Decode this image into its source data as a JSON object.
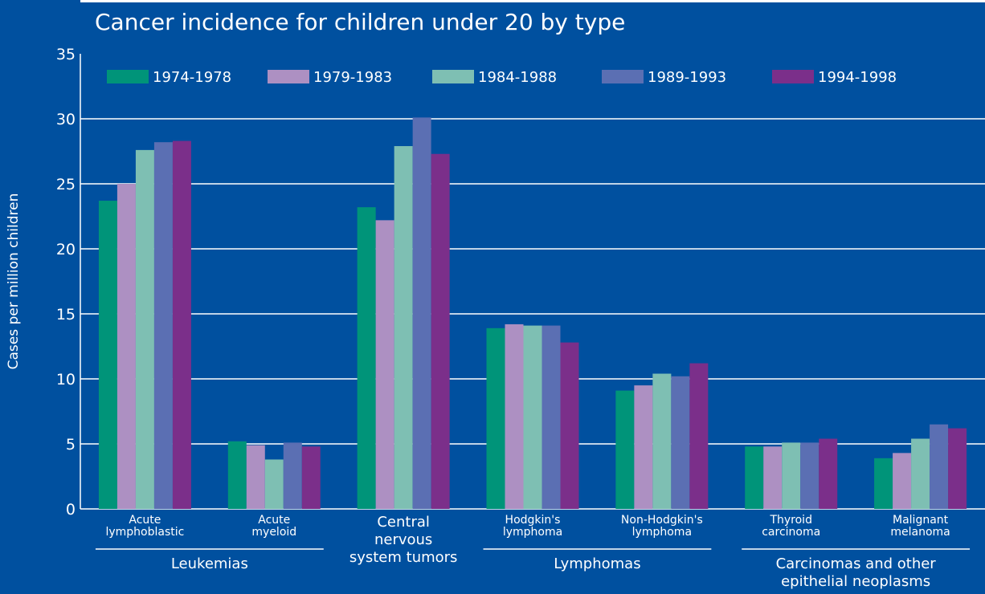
{
  "chart_data": {
    "type": "bar",
    "title": "Cancer incidence for children under 20 by type",
    "ylabel": "Cases per million children",
    "ylim": [
      0,
      35
    ],
    "yticks": [
      0,
      5,
      10,
      15,
      20,
      25,
      30,
      35
    ],
    "grid": true,
    "legend_position": "top",
    "categories": [
      [
        "Acute",
        "lymphoblastic"
      ],
      [
        "Acute",
        "myeloid"
      ],
      [
        "Central",
        "nervous",
        "system tumors"
      ],
      [
        "Hodgkin's",
        "lymphoma"
      ],
      [
        "Non-Hodgkin's",
        "lymphoma"
      ],
      [
        "Thyroid",
        "carcinoma"
      ],
      [
        "Malignant",
        "melanoma"
      ]
    ],
    "groups": [
      {
        "label": [
          "Leukemias"
        ],
        "from": 0,
        "to": 1
      },
      {
        "label": [
          "Lymphomas"
        ],
        "from": 3,
        "to": 4
      },
      {
        "label": [
          "Carcinomas and other",
          "epithelial neoplasms"
        ],
        "from": 5,
        "to": 6
      }
    ],
    "series": [
      {
        "name": "1974-1978",
        "color": "#009479",
        "values": [
          23.7,
          5.2,
          23.2,
          13.9,
          9.1,
          4.8,
          3.9
        ]
      },
      {
        "name": "1979-1983",
        "color": "#ad90c2",
        "values": [
          25.0,
          4.9,
          22.2,
          14.2,
          9.5,
          4.8,
          4.3
        ]
      },
      {
        "name": "1984-1988",
        "color": "#7ebfb3",
        "values": [
          27.6,
          3.8,
          27.9,
          14.1,
          10.4,
          5.1,
          5.4
        ]
      },
      {
        "name": "1989-1993",
        "color": "#5b6fb3",
        "values": [
          28.2,
          5.1,
          30.1,
          14.1,
          10.2,
          5.1,
          6.5
        ]
      },
      {
        "name": "1994-1998",
        "color": "#7b2f8a",
        "values": [
          28.3,
          4.8,
          27.3,
          12.8,
          11.2,
          5.4,
          6.2
        ]
      }
    ]
  }
}
